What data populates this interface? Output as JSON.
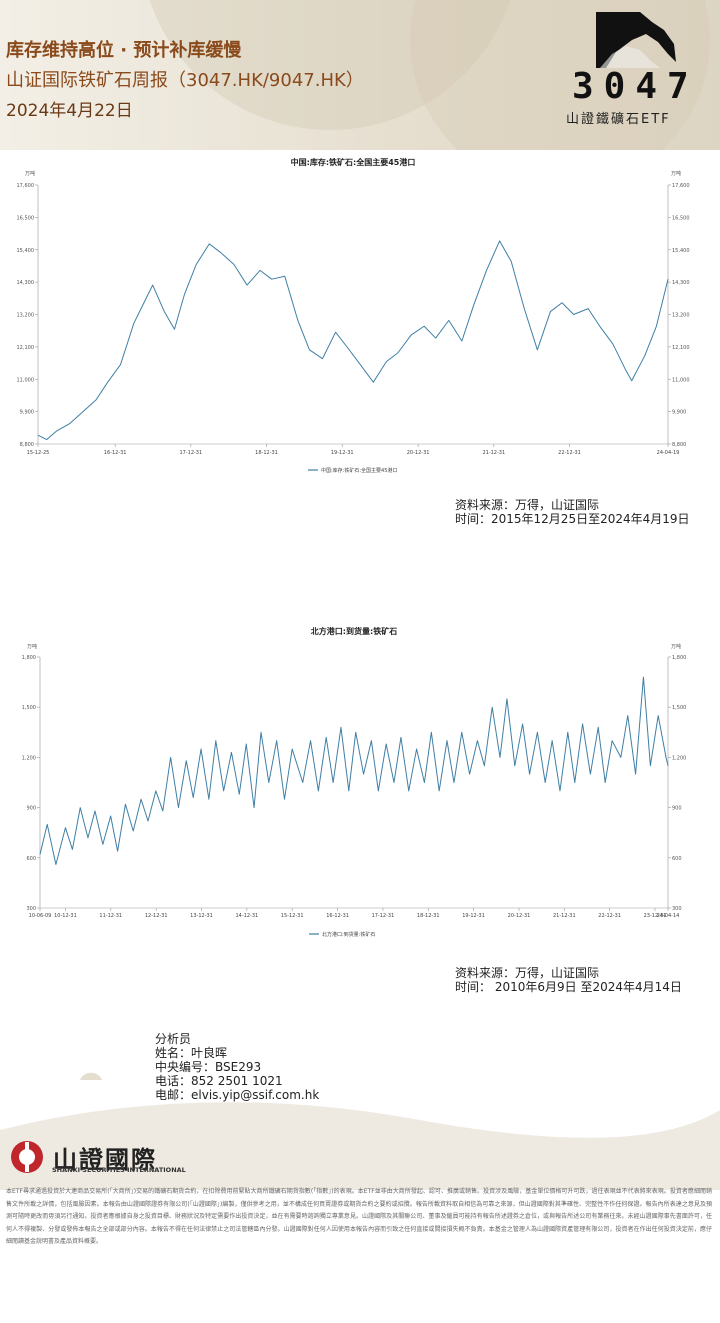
{
  "header": {
    "title": "库存维持高位 · 预计补库缓慢",
    "subtitle": "山证国际铁矿石周报（3047.HK/9047.HK）",
    "date": "2024年4月22日",
    "logo_code": "3047",
    "logo_name": "山證鐵礦石ETF"
  },
  "chart_data": [
    {
      "type": "line",
      "title": "中国:库存:铁矿石:全国主要45港口",
      "y_label": "万吨",
      "y2_label": "万吨",
      "xlim": [
        "15-12-25",
        "24-04-19"
      ],
      "xticks": [
        "15-12-25",
        "16-12-31",
        "17-12-31",
        "18-12-31",
        "19-12-31",
        "20-12-31",
        "21-12-31",
        "22-12-31",
        "24-04-19"
      ],
      "ylim": [
        8800,
        17600
      ],
      "yticks": [
        {
          "value": 8800,
          "label": "8,800"
        },
        {
          "value": 9900,
          "label": "9,900"
        },
        {
          "value": 11000,
          "label": "11,000"
        },
        {
          "value": 12100,
          "label": "12,100"
        },
        {
          "value": 13200,
          "label": "13,200"
        },
        {
          "value": 14300,
          "label": "14,300"
        },
        {
          "value": 15400,
          "label": "15,400"
        },
        {
          "value": 16500,
          "label": "16,500"
        },
        {
          "value": 17600,
          "label": "17,600"
        }
      ],
      "y2lim": [
        8800,
        17600
      ],
      "y2ticks": [
        {
          "value": 8800,
          "label": "8,800"
        },
        {
          "value": 9900,
          "label": "9,900"
        },
        {
          "value": 11000,
          "label": "11,000"
        },
        {
          "value": 12100,
          "label": "12,100"
        },
        {
          "value": 13200,
          "label": "13,200"
        },
        {
          "value": 14300,
          "label": "14,300"
        },
        {
          "value": 15400,
          "label": "15,400"
        },
        {
          "value": 16500,
          "label": "16,500"
        },
        {
          "value": 17600,
          "label": "17,600"
        }
      ],
      "x": [
        "15-12-25",
        "16-02-05",
        "16-03-25",
        "16-05-27",
        "16-07-29",
        "16-09-30",
        "16-11-25",
        "17-01-26",
        "17-03-31",
        "17-05-26",
        "17-06-30",
        "17-08-25",
        "17-10-13",
        "17-12-01",
        "18-01-26",
        "18-03-30",
        "18-05-25",
        "18-07-27",
        "18-09-28",
        "18-11-30",
        "19-01-25",
        "19-03-29",
        "19-05-31",
        "19-07-26",
        "19-09-27",
        "19-11-29",
        "20-01-23",
        "20-03-27",
        "20-05-29",
        "20-07-31",
        "20-09-25",
        "20-11-27",
        "21-01-29",
        "21-03-26",
        "21-05-28",
        "21-07-30",
        "21-09-24",
        "21-11-26",
        "22-01-28",
        "22-03-25",
        "22-05-27",
        "22-07-29",
        "22-09-30",
        "22-11-25",
        "23-01-20",
        "23-03-31",
        "23-05-26",
        "23-07-28",
        "23-09-29",
        "23-10-27",
        "23-12-29",
        "24-02-23",
        "24-04-19"
      ],
      "series": [
        {
          "name": "中国:库存:铁矿石:全国主要45港口",
          "color": "#3f7fa6",
          "values": [
            9100,
            8950,
            9250,
            9500,
            9900,
            10300,
            10900,
            11500,
            12900,
            13700,
            14200,
            13300,
            12700,
            13900,
            14900,
            15600,
            15300,
            14900,
            14200,
            14700,
            14400,
            14500,
            13000,
            12000,
            11700,
            12600,
            12100,
            11500,
            10900,
            11600,
            11900,
            12500,
            12800,
            12400,
            13000,
            12300,
            13500,
            14700,
            15700,
            15000,
            13400,
            12000,
            13300,
            13600,
            13200,
            13400,
            12800,
            12200,
            11300,
            10950,
            11800,
            12800,
            14400
          ]
        }
      ]
    },
    {
      "type": "line",
      "title": "北方港口:到货量:铁矿石",
      "y_label": "万吨",
      "y2_label": "万吨",
      "xlim": [
        "10-06-09",
        "24-04-14"
      ],
      "xticks": [
        "10-06-09",
        "10-12-31",
        "11-12-31",
        "12-12-31",
        "13-12-31",
        "14-12-31",
        "15-12-31",
        "16-12-31",
        "17-12-31",
        "18-12-31",
        "19-12-31",
        "20-12-31",
        "21-12-31",
        "22-12-31",
        "23-12-31",
        "24-04-14"
      ],
      "ylim": [
        300,
        1800
      ],
      "yticks": [
        300,
        600,
        900,
        {
          "value": 1200,
          "label": "1,200"
        },
        {
          "value": 1500,
          "label": "1,500"
        },
        {
          "value": 1800,
          "label": "1,800"
        }
      ],
      "y2lim": [
        300,
        1800
      ],
      "y2ticks": [
        300,
        600,
        900,
        {
          "value": 1200,
          "label": "1,200"
        },
        {
          "value": 1500,
          "label": "1,500"
        },
        {
          "value": 1800,
          "label": "1,800"
        }
      ],
      "x": [
        "10-06-09",
        "10-08-06",
        "10-10-15",
        "10-12-31",
        "11-02-25",
        "11-04-29",
        "11-06-30",
        "11-08-26",
        "11-10-28",
        "11-12-30",
        "12-02-24",
        "12-04-27",
        "12-06-29",
        "12-08-31",
        "12-10-26",
        "12-12-28",
        "13-02-22",
        "13-04-26",
        "13-06-28",
        "13-08-30",
        "13-10-25",
        "13-12-27",
        "14-02-28",
        "14-04-25",
        "14-06-27",
        "14-08-29",
        "14-10-31",
        "14-12-26",
        "15-02-27",
        "15-04-24",
        "15-06-26",
        "15-08-28",
        "15-10-30",
        "15-12-31",
        "16-03-25",
        "16-05-27",
        "16-07-29",
        "16-09-30",
        "16-11-25",
        "17-01-27",
        "17-03-31",
        "17-05-26",
        "17-07-28",
        "17-09-29",
        "17-11-24",
        "18-01-26",
        "18-03-30",
        "18-05-25",
        "18-07-27",
        "18-09-28",
        "18-11-30",
        "19-01-25",
        "19-03-29",
        "19-05-31",
        "19-07-26",
        "19-09-27",
        "19-11-29",
        "20-01-31",
        "20-03-27",
        "20-05-29",
        "20-07-31",
        "20-09-25",
        "20-11-27",
        "21-01-29",
        "21-03-26",
        "21-05-28",
        "21-07-30",
        "21-09-24",
        "21-11-26",
        "22-01-28",
        "22-03-25",
        "22-05-27",
        "22-07-29",
        "22-09-30",
        "22-11-25",
        "23-01-20",
        "23-03-31",
        "23-05-26",
        "23-07-28",
        "23-09-29",
        "23-11-24",
        "24-01-26",
        "24-03-29",
        "24-04-14"
      ],
      "series": [
        {
          "name": "北方港口:到货量:铁矿石",
          "color": "#3f7fa6",
          "values": [
            620,
            800,
            560,
            780,
            650,
            900,
            720,
            880,
            680,
            850,
            640,
            920,
            760,
            950,
            820,
            1000,
            880,
            1200,
            900,
            1180,
            960,
            1250,
            950,
            1300,
            1000,
            1230,
            980,
            1280,
            900,
            1350,
            1050,
            1300,
            950,
            1250,
            1050,
            1300,
            1000,
            1320,
            1050,
            1380,
            1000,
            1350,
            1100,
            1300,
            1000,
            1280,
            1050,
            1320,
            1000,
            1250,
            1050,
            1350,
            1000,
            1300,
            1050,
            1350,
            1100,
            1300,
            1150,
            1500,
            1200,
            1550,
            1150,
            1400,
            1100,
            1350,
            1050,
            1300,
            1000,
            1350,
            1050,
            1400,
            1100,
            1380,
            1050,
            1300,
            1200,
            1450,
            1100,
            1680,
            1150,
            1450,
            1200,
            1150
          ]
        }
      ]
    }
  ],
  "sources": [
    {
      "source": "资料来源：万得，山证国际",
      "period": "时间：2015年12月25日至2024年4月19日"
    },
    {
      "source": "资料来源：万得，山证国际",
      "period": "时间： 2010年6月9日 至2024年4月14日"
    }
  ],
  "analyst": {
    "heading": "分析员",
    "name": "姓名：叶良晖",
    "id": "中央编号：BSE293",
    "phone": "电话：852 2501 1021",
    "email": "电邮：elvis.yip@ssif.com.hk"
  },
  "footer": {
    "company": "山證國際",
    "company_en": "SHANXI SECURITIES INTERNATIONAL",
    "disclaimer": "本ETF尋求通過投資於大連商品交易所(「大商所」)交易的鐵礦石期貨合約，在扣除費用前緊貼大商所鐵礦石期貨指數(「指數」)的表現。本ETF並非由大商所發起、認可、推廣或銷售。投資涉及風險，基金單位價格可升可跌，過往表現並不代表將來表現。投資者應細閱銷售文件所載之詳情，包括風險因素。本報告由山證國際證券有限公司(「山證國際」)編製，僅供參考之用，並不構成任何買賣證券或期貨合約之要約或招攬。報告所載資料取自相信為可靠之來源，但山證國際對其準確性、完整性不作任何保證。報告內所表達之意見及預測可隨時更改而毋須另行通知。投資者應根據自身之投資目標、財務狀況及特定需要作出投資決定，並在有需要時諮詢獨立專業意見。山證國際及其關聯公司、董事及僱員可能持有報告所述證券之倉位，或與報告所述公司有業務往來。未經山證國際事先書面許可，任何人不得複製、分發或發佈本報告之全部或部分內容。本報告不得在任何法律禁止之司法管轄區內分發。山證國際對任何人因使用本報告內容而引致之任何直接或間接損失概不負責。本基金之管理人為山證國際資產管理有限公司，投資者在作出任何投資決定前，應仔細閱讀基金說明書及產品資料概要。"
  }
}
